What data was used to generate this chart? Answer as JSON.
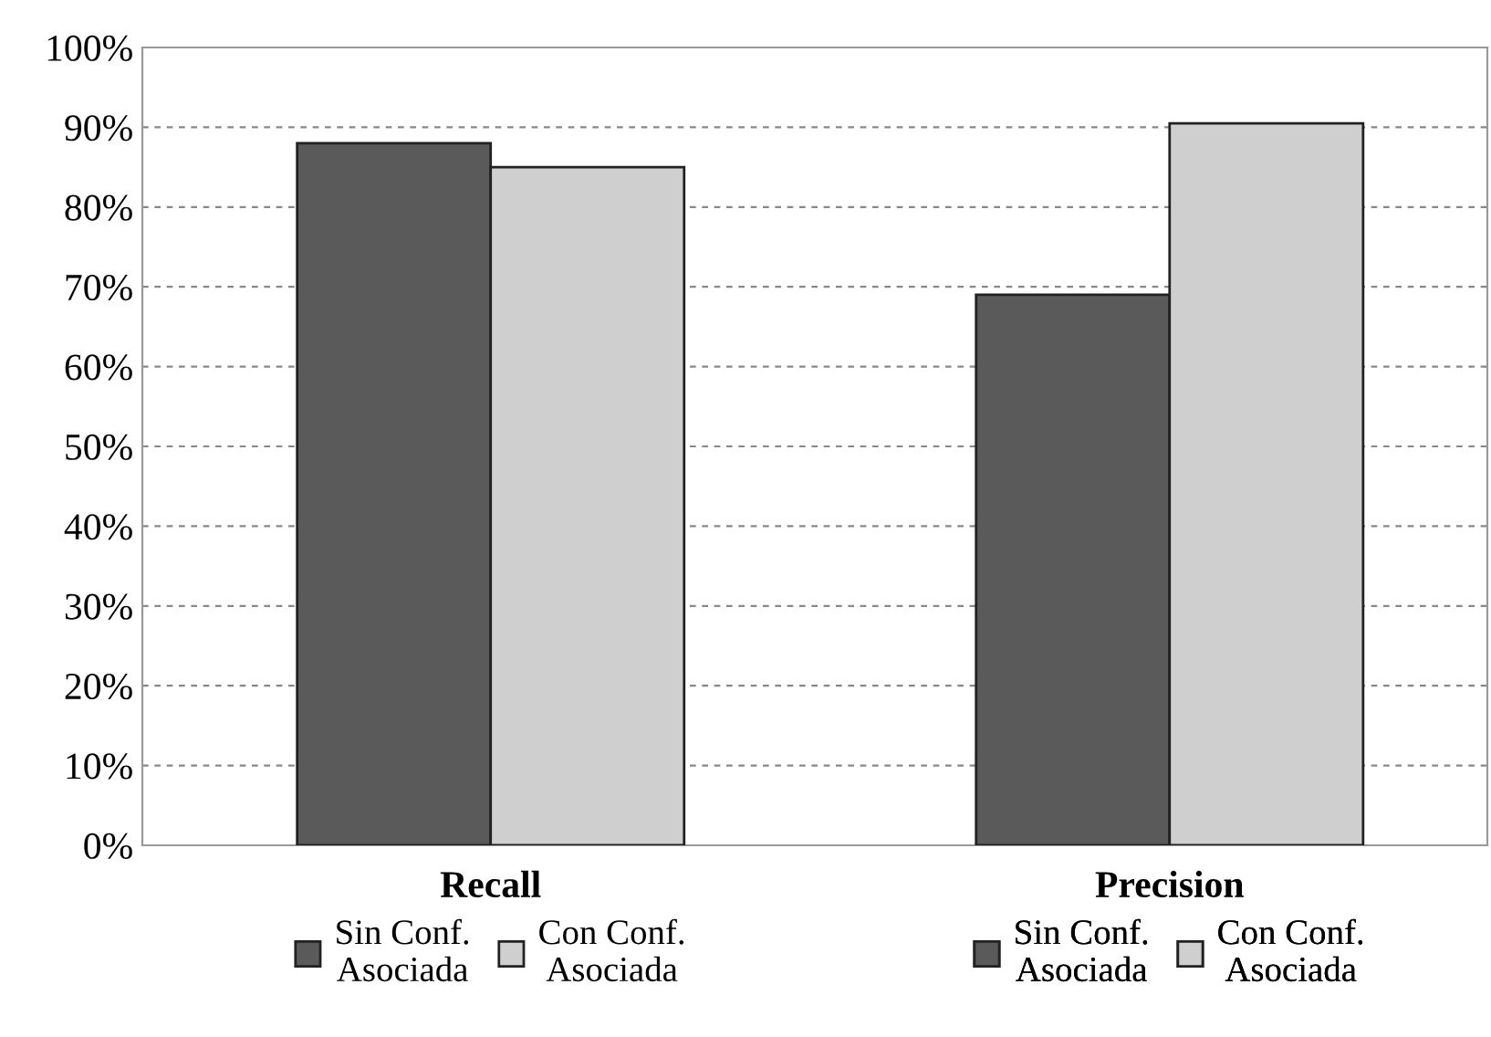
{
  "chart_data": {
    "type": "bar",
    "categories": [
      "Recall",
      "Precision"
    ],
    "series": [
      {
        "name": "Sin Conf. Asociada",
        "color": "#5a5a5a",
        "values": [
          88,
          69
        ]
      },
      {
        "name": "Con Conf. Asociada",
        "color": "#cfcfcf",
        "values": [
          85,
          90.5
        ]
      }
    ],
    "ylim": [
      0,
      100
    ],
    "yticks": [
      {
        "value": 0,
        "label": "0%"
      },
      {
        "value": 10,
        "label": "10%"
      },
      {
        "value": 20,
        "label": "20%"
      },
      {
        "value": 30,
        "label": "30%"
      },
      {
        "value": 40,
        "label": "40%"
      },
      {
        "value": 50,
        "label": "50%"
      },
      {
        "value": 60,
        "label": "60%"
      },
      {
        "value": 70,
        "label": "70%"
      },
      {
        "value": 80,
        "label": "80%"
      },
      {
        "value": 90,
        "label": "90%"
      },
      {
        "value": 100,
        "label": "100%"
      }
    ],
    "grid": "y",
    "legend": "bottom"
  }
}
